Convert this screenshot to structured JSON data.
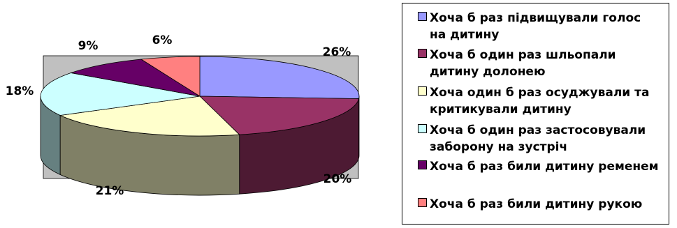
{
  "chart_data": {
    "type": "pie",
    "title": "",
    "legend_position": "right",
    "slices": [
      {
        "label": "Хоча б раз підвищували голос на дитину",
        "value": 26,
        "value_label": "26%",
        "color": "#9999ff",
        "side_color": "#4d4d80"
      },
      {
        "label": "Хоча б один раз шльопали дитину долонею",
        "value": 20,
        "value_label": "20%",
        "color": "#993366",
        "side_color": "#4d1a33"
      },
      {
        "label": "Хоча один б раз осуджували та критикували дитину",
        "value": 21,
        "value_label": "21%",
        "color": "#ffffcc",
        "side_color": "#808066"
      },
      {
        "label": "Хоча б один раз застосовували заборону на зустріч",
        "value": 18,
        "value_label": "18%",
        "color": "#ccffff",
        "side_color": "#668080"
      },
      {
        "label": "Хоча б раз били дитину ременем",
        "value": 9,
        "value_label": "9%",
        "color": "#660066",
        "side_color": "#330033"
      },
      {
        "label": "Хоча б раз били дитину рукою",
        "value": 6,
        "value_label": "6%",
        "color": "#ff8080",
        "side_color": "#804040"
      }
    ]
  },
  "legend": {
    "items": [
      {
        "label": "Хоча б раз підвищували голос\nна дитину",
        "color": "#9999ff"
      },
      {
        "label": "Хоча б один раз шльопали\nдитину долонею",
        "color": "#993366"
      },
      {
        "label": "Хоча один б раз осуджували та\nкритикували дитину",
        "color": "#ffffcc"
      },
      {
        "label": "Хоча б один раз застосовували\nзаборону на зустріч",
        "color": "#ccffff"
      },
      {
        "label": "Хоча б раз били дитину ременем",
        "color": "#660066"
      },
      {
        "label": "Хоча б раз били дитину рукою",
        "color": "#ff8080"
      }
    ]
  }
}
